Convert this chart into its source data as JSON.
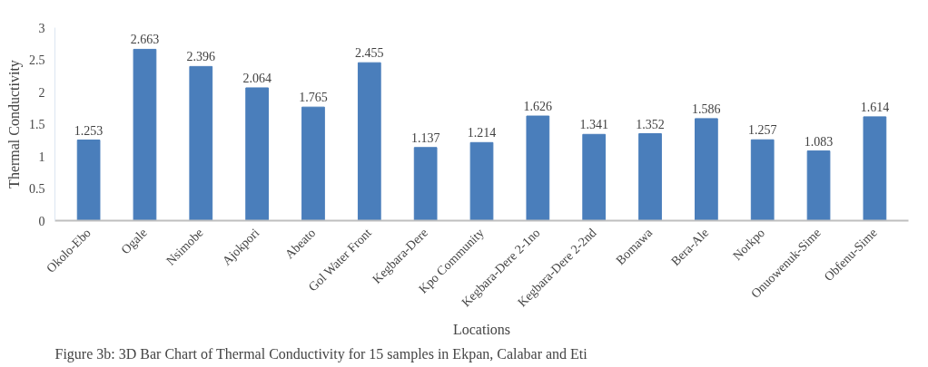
{
  "chart_data": {
    "type": "bar",
    "categories": [
      "Okolo-Ebo",
      "Ogale",
      "Nsimobe",
      "Ajokpori",
      "Abeato",
      "Gol Water Front",
      "Kegbara-Dere",
      "Kpo Community",
      "Kegbara-Dere 2-1no",
      "Kegbara-Dere 2-2nd",
      "Bomawa",
      "Bera-Ale",
      "Norkpo",
      "Onuowenuk-Sime",
      "Obfenu-Sime"
    ],
    "values": [
      1.253,
      2.663,
      2.396,
      2.064,
      1.765,
      2.455,
      1.137,
      1.214,
      1.626,
      1.341,
      1.352,
      1.586,
      1.257,
      1.083,
      1.614
    ],
    "color": "#4a7ebb",
    "ylim": [
      0,
      3
    ],
    "yticks": [
      0,
      0.5,
      1,
      1.5,
      2,
      2.5,
      3
    ],
    "xlabel": "Locations",
    "ylabel": "Thermal Conductivity",
    "data_labels": true,
    "grid": false,
    "annotations": [
      "Figure 3b: 3D Bar Chart of Thermal Conductivity for 15 samples in Ekpan, Calabar and Eti"
    ]
  }
}
